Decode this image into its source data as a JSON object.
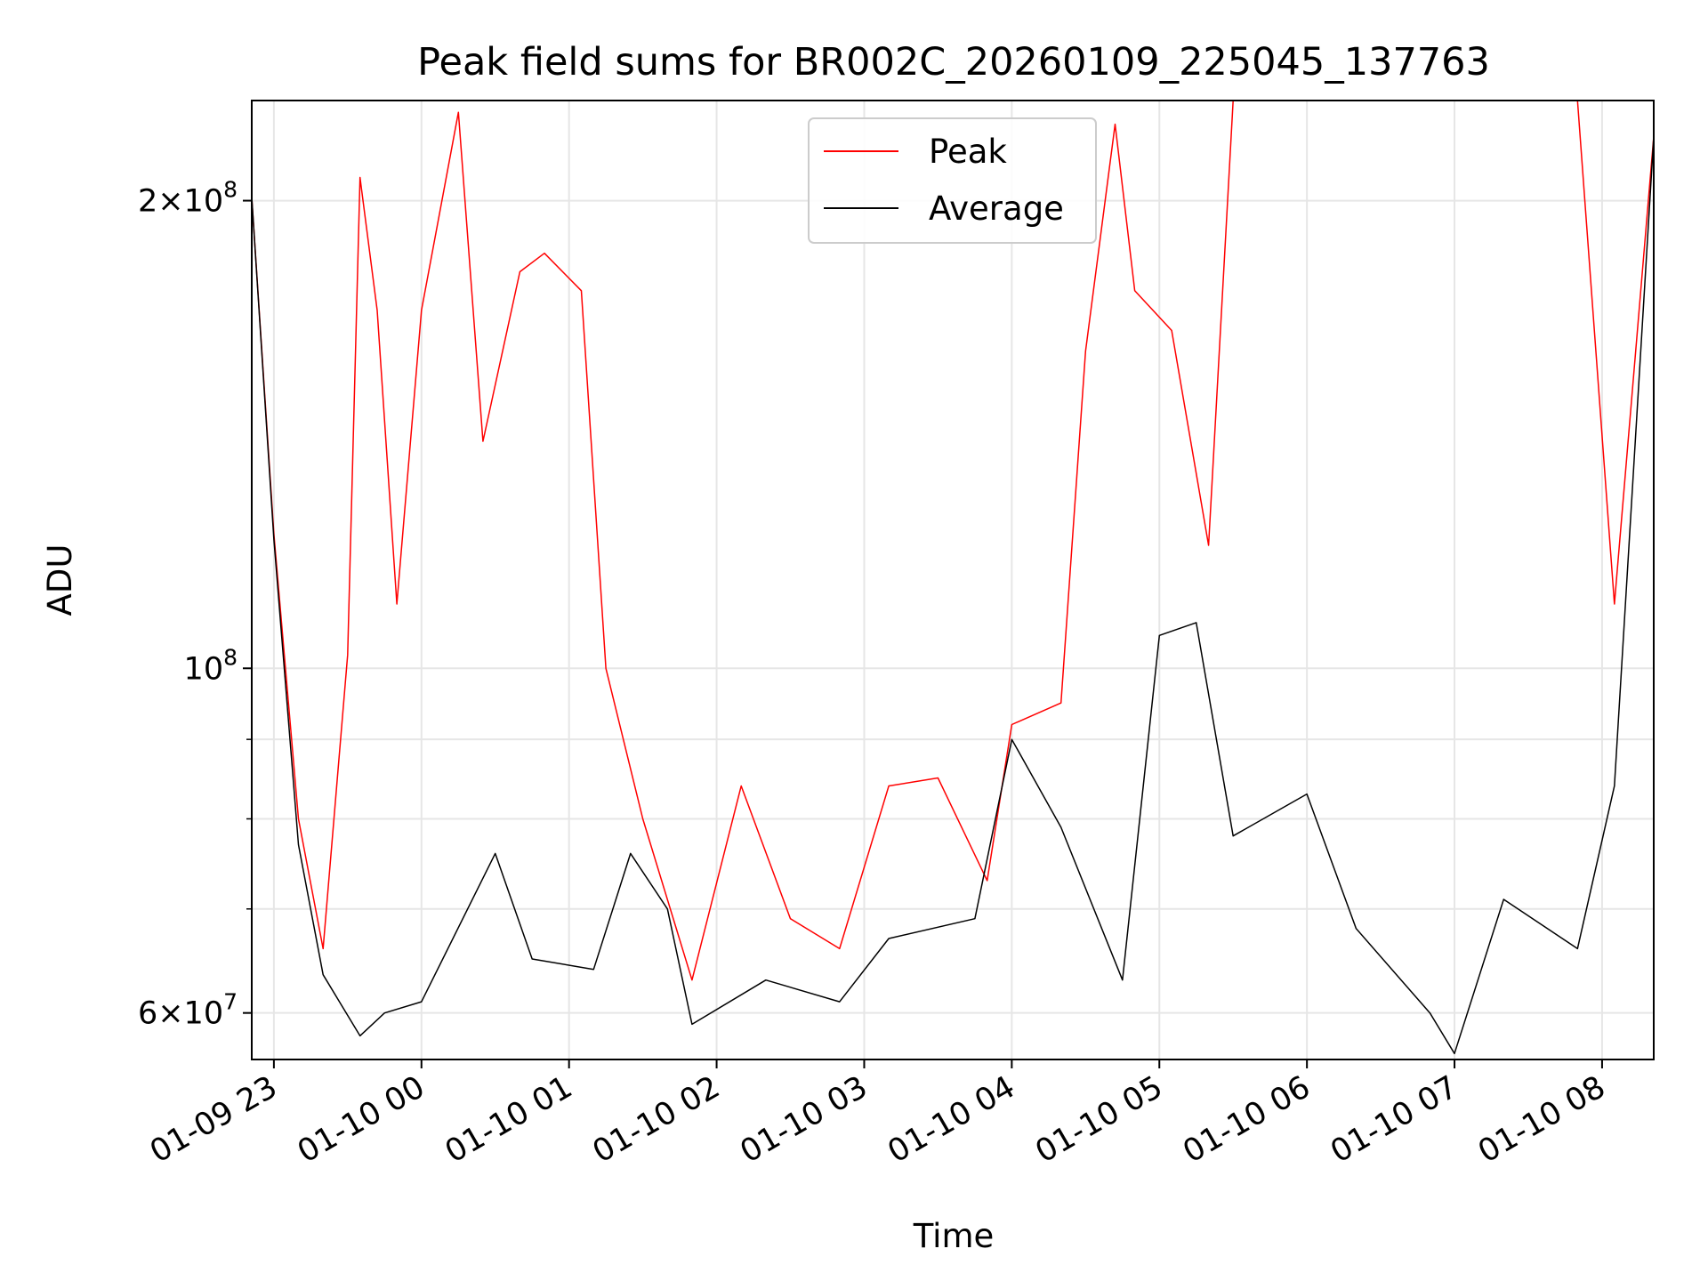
{
  "chart_data": {
    "type": "line",
    "title": "Peak field sums for BR002C_20260109_225045_137763",
    "xlabel": "Time",
    "ylabel": "ADU",
    "y_scale": "log",
    "ylim": [
      56000000,
      232000000
    ],
    "xlim": [
      "2026-01-09T22:51",
      "2026-01-10T08:21"
    ],
    "grid": true,
    "legend_position": "upper center",
    "x_ticks": [
      {
        "t": "2026-01-09T23:00",
        "label": "01-09 23"
      },
      {
        "t": "2026-01-10T00:00",
        "label": "01-10 00"
      },
      {
        "t": "2026-01-10T01:00",
        "label": "01-10 01"
      },
      {
        "t": "2026-01-10T02:00",
        "label": "01-10 02"
      },
      {
        "t": "2026-01-10T03:00",
        "label": "01-10 03"
      },
      {
        "t": "2026-01-10T04:00",
        "label": "01-10 04"
      },
      {
        "t": "2026-01-10T05:00",
        "label": "01-10 05"
      },
      {
        "t": "2026-01-10T06:00",
        "label": "01-10 06"
      },
      {
        "t": "2026-01-10T07:00",
        "label": "01-10 07"
      },
      {
        "t": "2026-01-10T08:00",
        "label": "01-10 08"
      }
    ],
    "y_ticks": [
      {
        "v": 60000000,
        "mant": "6",
        "exp": "7"
      },
      {
        "v": 100000000,
        "mant": "",
        "exp": "8"
      },
      {
        "v": 200000000,
        "mant": "2",
        "exp": "8"
      }
    ],
    "y_minor_ticks": [
      70000000,
      80000000,
      90000000
    ],
    "series": [
      {
        "name": "Peak",
        "color": "#ff0000",
        "points": [
          [
            "2026-01-09T22:51",
            201000000
          ],
          [
            "2026-01-09T23:00",
            122000000
          ],
          [
            "2026-01-09T23:10",
            80000000
          ],
          [
            "2026-01-09T23:20",
            66000000
          ],
          [
            "2026-01-09T23:30",
            102000000
          ],
          [
            "2026-01-09T23:35",
            207000000
          ],
          [
            "2026-01-09T23:42",
            170000000
          ],
          [
            "2026-01-09T23:50",
            110000000
          ],
          [
            "2026-01-10T00:00",
            170000000
          ],
          [
            "2026-01-10T00:15",
            228000000
          ],
          [
            "2026-01-10T00:25",
            140000000
          ],
          [
            "2026-01-10T00:40",
            180000000
          ],
          [
            "2026-01-10T00:50",
            185000000
          ],
          [
            "2026-01-10T01:05",
            175000000
          ],
          [
            "2026-01-10T01:15",
            100000000
          ],
          [
            "2026-01-10T01:30",
            80000000
          ],
          [
            "2026-01-10T01:50",
            63000000
          ],
          [
            "2026-01-10T02:10",
            84000000
          ],
          [
            "2026-01-10T02:30",
            69000000
          ],
          [
            "2026-01-10T02:50",
            66000000
          ],
          [
            "2026-01-10T03:10",
            84000000
          ],
          [
            "2026-01-10T03:30",
            85000000
          ],
          [
            "2026-01-10T03:50",
            73000000
          ],
          [
            "2026-01-10T04:00",
            92000000
          ],
          [
            "2026-01-10T04:20",
            95000000
          ],
          [
            "2026-01-10T04:30",
            160000000
          ],
          [
            "2026-01-10T04:42",
            224000000
          ],
          [
            "2026-01-10T04:50",
            175000000
          ],
          [
            "2026-01-10T05:05",
            165000000
          ],
          [
            "2026-01-10T05:20",
            120000000
          ],
          [
            "2026-01-10T05:30",
            232000000
          ],
          [
            "2026-01-10T05:50",
            232000000
          ],
          [
            "2026-01-10T06:10",
            232000000
          ],
          [
            "2026-01-10T06:30",
            232000000
          ],
          [
            "2026-01-10T06:50",
            232000000
          ],
          [
            "2026-01-10T07:10",
            232000000
          ],
          [
            "2026-01-10T07:30",
            232000000
          ],
          [
            "2026-01-10T07:50",
            232000000
          ],
          [
            "2026-01-10T08:05",
            110000000
          ],
          [
            "2026-01-10T08:21",
            220000000
          ]
        ]
      },
      {
        "name": "Average",
        "color": "#000000",
        "points": [
          [
            "2026-01-09T22:51",
            201000000
          ],
          [
            "2026-01-09T23:00",
            121000000
          ],
          [
            "2026-01-09T23:10",
            77000000
          ],
          [
            "2026-01-09T23:20",
            63500000
          ],
          [
            "2026-01-09T23:35",
            58000000
          ],
          [
            "2026-01-09T23:45",
            60000000
          ],
          [
            "2026-01-10T00:00",
            61000000
          ],
          [
            "2026-01-10T00:30",
            76000000
          ],
          [
            "2026-01-10T00:45",
            65000000
          ],
          [
            "2026-01-10T01:10",
            64000000
          ],
          [
            "2026-01-10T01:25",
            76000000
          ],
          [
            "2026-01-10T01:40",
            70000000
          ],
          [
            "2026-01-10T01:50",
            59000000
          ],
          [
            "2026-01-10T02:20",
            63000000
          ],
          [
            "2026-01-10T02:50",
            61000000
          ],
          [
            "2026-01-10T03:10",
            67000000
          ],
          [
            "2026-01-10T03:45",
            69000000
          ],
          [
            "2026-01-10T04:00",
            90000000
          ],
          [
            "2026-01-10T04:20",
            79000000
          ],
          [
            "2026-01-10T04:45",
            63000000
          ],
          [
            "2026-01-10T05:00",
            105000000
          ],
          [
            "2026-01-10T05:15",
            107000000
          ],
          [
            "2026-01-10T05:30",
            78000000
          ],
          [
            "2026-01-10T06:00",
            83000000
          ],
          [
            "2026-01-10T06:20",
            68000000
          ],
          [
            "2026-01-10T06:50",
            60000000
          ],
          [
            "2026-01-10T07:00",
            56500000
          ],
          [
            "2026-01-10T07:20",
            71000000
          ],
          [
            "2026-01-10T07:50",
            66000000
          ],
          [
            "2026-01-10T08:05",
            84000000
          ],
          [
            "2026-01-10T08:21",
            220000000
          ]
        ]
      }
    ]
  }
}
